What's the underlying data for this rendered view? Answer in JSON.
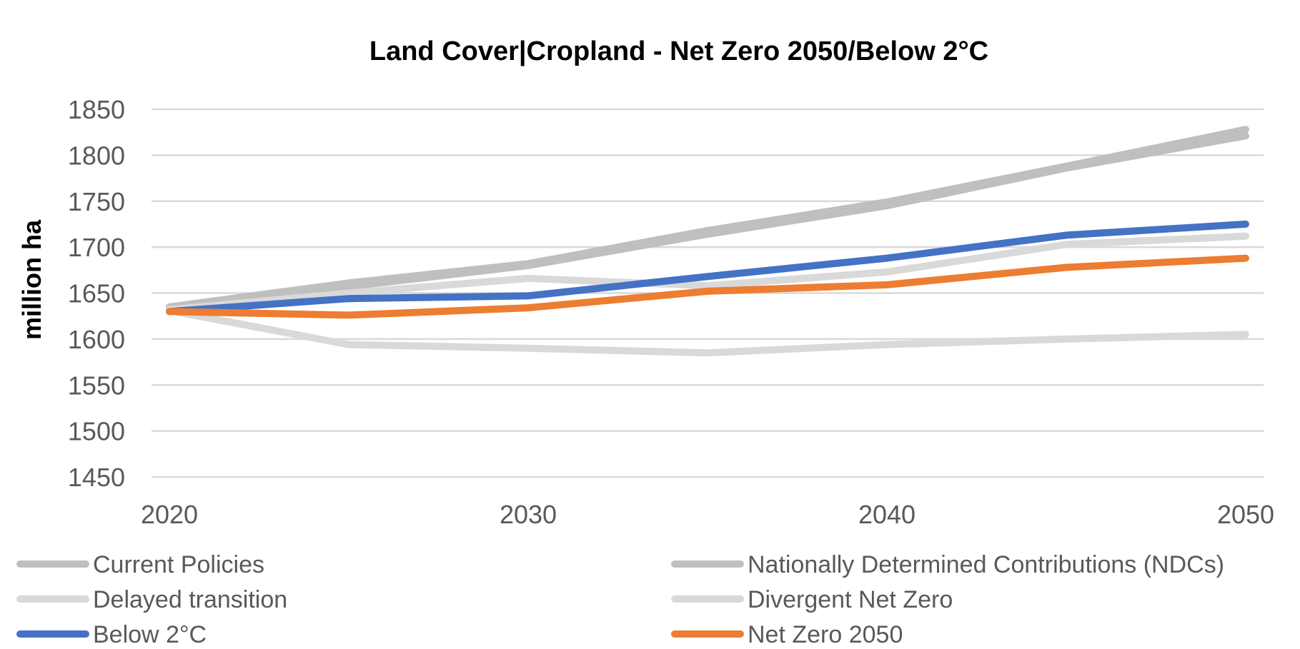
{
  "chart_data": {
    "type": "line",
    "title": "Land Cover|Cropland - Net Zero 2050/Below 2°C",
    "ylabel": "million ha",
    "xlabel": "",
    "x": [
      2020,
      2025,
      2030,
      2035,
      2040,
      2045,
      2050
    ],
    "x_ticks": [
      "2020",
      "2030",
      "2040",
      "2050"
    ],
    "y_ticks": [
      "1850",
      "1800",
      "1750",
      "1700",
      "1650",
      "1600",
      "1550",
      "1500",
      "1450"
    ],
    "ylim": [
      1450,
      1850
    ],
    "xlim": [
      2020,
      2050
    ],
    "grid": true,
    "legend_position": "bottom",
    "series": [
      {
        "name": "Current Policies",
        "color": "#bfbfbf",
        "values": [
          1635,
          1661,
          1682,
          1718,
          1749,
          1788,
          1828
        ]
      },
      {
        "name": "Nationally Determined Contributions (NDCs)",
        "color": "#bfbfbf",
        "values": [
          1633,
          1657,
          1680,
          1714,
          1745,
          1786,
          1821
        ]
      },
      {
        "name": "Delayed transition",
        "color": "#d9d9d9",
        "values": [
          1632,
          1650,
          1666,
          1658,
          1673,
          1703,
          1712
        ]
      },
      {
        "name": "Divergent Net Zero",
        "color": "#d9d9d9",
        "values": [
          1631,
          1594,
          1590,
          1585,
          1594,
          1600,
          1605
        ]
      },
      {
        "name": "Below 2°C",
        "color": "#4472c4",
        "values": [
          1630,
          1644,
          1647,
          1668,
          1688,
          1713,
          1725
        ]
      },
      {
        "name": "Net Zero 2050",
        "color": "#ed7d31",
        "values": [
          1630,
          1626,
          1634,
          1652,
          1659,
          1678,
          1688
        ]
      }
    ]
  }
}
